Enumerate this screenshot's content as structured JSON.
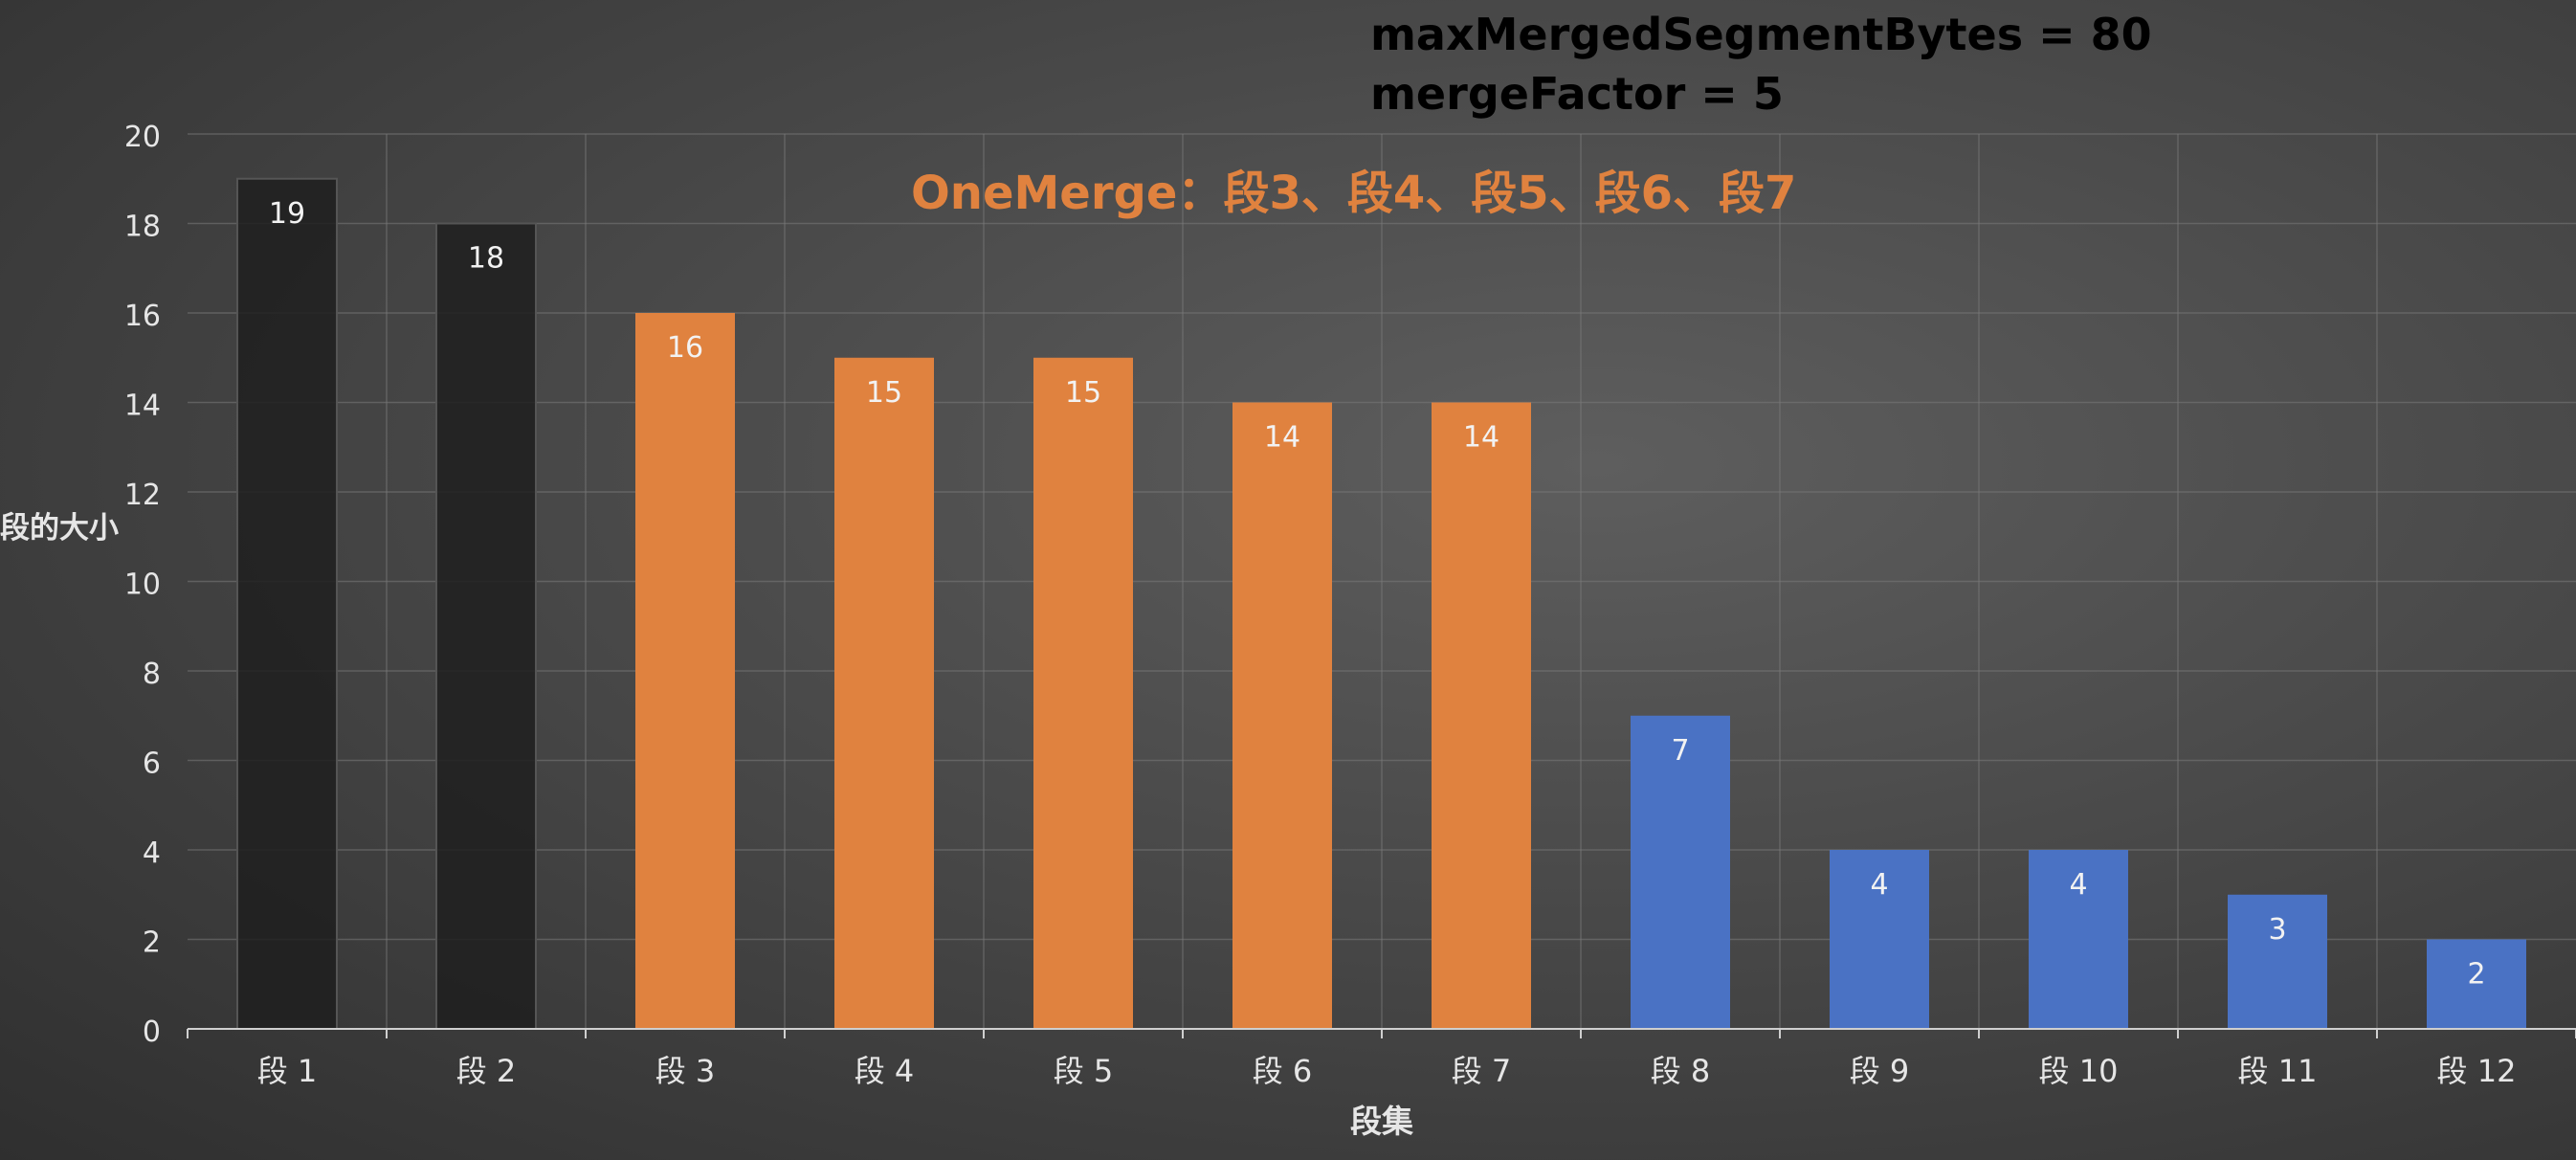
{
  "parameters": {
    "line1": "maxMergedSegmentBytes = 80",
    "line2": "mergeFactor = 5"
  },
  "annotation": {
    "text": "OneMerge：段3、段4、段5、段6、段7",
    "color": "#E0823F"
  },
  "colors": {
    "merged": "#1E1E1E",
    "selected": "#E0823F",
    "remaining": "#4A72C4"
  },
  "chart_data": {
    "type": "bar",
    "title": "",
    "xlabel": "段集",
    "ylabel": "段的大小",
    "ylim": [
      0,
      20
    ],
    "yticks": [
      0,
      2,
      4,
      6,
      8,
      10,
      12,
      14,
      16,
      18,
      20
    ],
    "grid": true,
    "legend": "none",
    "categories": [
      "段 1",
      "段 2",
      "段 3",
      "段 4",
      "段 5",
      "段 6",
      "段 7",
      "段 8",
      "段 9",
      "段 10",
      "段 11",
      "段 12"
    ],
    "values": [
      19,
      18,
      16,
      15,
      15,
      14,
      14,
      7,
      4,
      4,
      3,
      2
    ],
    "bar_groups": [
      "merged",
      "merged",
      "selected",
      "selected",
      "selected",
      "selected",
      "selected",
      "remaining",
      "remaining",
      "remaining",
      "remaining",
      "remaining"
    ]
  }
}
